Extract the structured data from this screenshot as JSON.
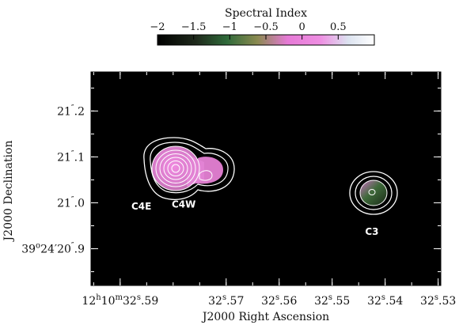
{
  "chart_data": {
    "type": "heatmap",
    "colorbar": {
      "label": "Spectral Index",
      "range": [
        -2,
        1
      ],
      "ticks": [
        "−2",
        "−1.5",
        "−1",
        "−0.5",
        "0",
        "0.5"
      ],
      "tick_values": [
        -2,
        -1.5,
        -1,
        -0.5,
        0,
        0.5
      ],
      "colors": [
        "#000000",
        "#1f2a1c",
        "#2f6a3a",
        "#8a8a50",
        "#e67ad6",
        "#ee8ee2",
        "#dce3f0",
        "#ffffff"
      ]
    },
    "xlabel": "J2000 Right Ascension",
    "ylabel": "J2000 Declination",
    "x_ticks": [
      {
        "value": 32.59,
        "main": "12",
        "sup1": "h",
        "mid": "10",
        "sup2": "m",
        "tail": "32",
        "sup3": "s",
        "end": ".59"
      },
      {
        "value": 32.57,
        "main": "32",
        "sup3": "s",
        "end": ".57"
      },
      {
        "value": 32.56,
        "main": "32",
        "sup3": "s",
        "end": ".56"
      },
      {
        "value": 32.55,
        "main": "32",
        "sup3": "s",
        "end": ".55"
      },
      {
        "value": 32.54,
        "main": "32",
        "sup3": "s",
        "end": ".54"
      },
      {
        "value": 32.53,
        "main": "32",
        "sup3": "s",
        "end": ".53"
      }
    ],
    "y_ticks": [
      {
        "value": 21.2,
        "main": "21",
        "sup": "″",
        "end": ".2"
      },
      {
        "value": 21.1,
        "main": "21",
        "sup": "″",
        "end": ".1"
      },
      {
        "value": 21.0,
        "main": "21",
        "sup": "″",
        "end": ".0"
      },
      {
        "value": 20.9,
        "main": "39",
        "sup": "o",
        "mid": "24′20",
        "sup2": "″",
        "end": ".9"
      }
    ],
    "xlim": [
      32.5955,
      32.5295
    ],
    "ylim": [
      20.82,
      21.285
    ],
    "sources": [
      {
        "label": "C4E",
        "ra": 32.5835,
        "dec": 21.071,
        "label_ra": 32.586,
        "label_dec": 20.985,
        "spectral_index": 0.1
      },
      {
        "label": "C4W",
        "ra": 32.5775,
        "dec": 21.063,
        "label_ra": 32.578,
        "label_dec": 20.99,
        "spectral_index": 0.3
      },
      {
        "label": "C3",
        "ra": 32.5425,
        "dec": 21.015,
        "label_ra": 32.5425,
        "label_dec": 20.93,
        "spectral_index": -0.9
      }
    ]
  }
}
